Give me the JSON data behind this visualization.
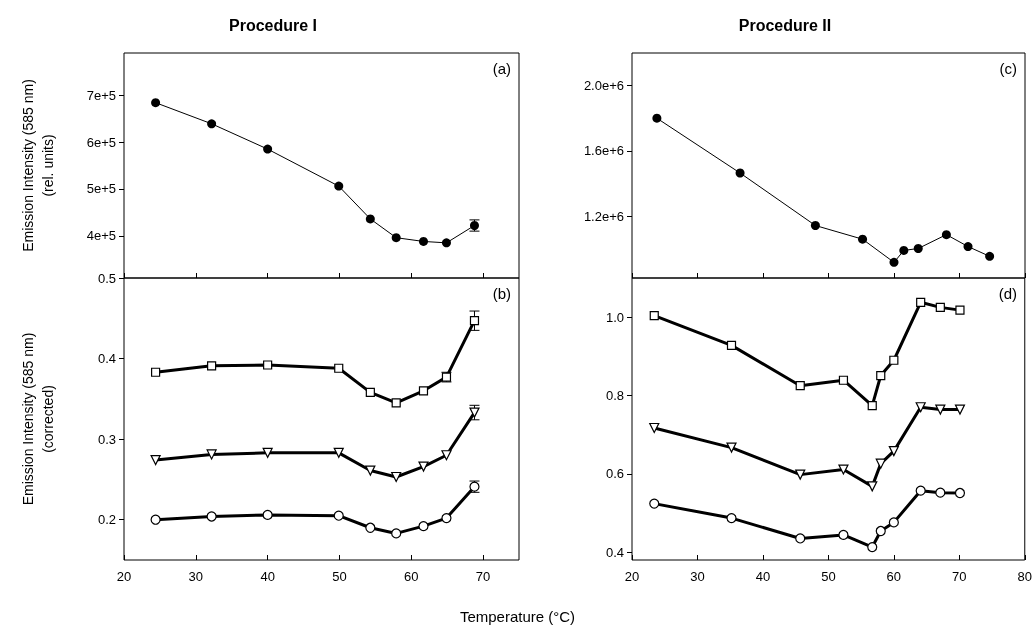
{
  "chart_data": [
    {
      "type": "line",
      "title": "Procedure I",
      "ylabel": "Emission Intensity (585 nm)\n(rel. units)",
      "annotations": [
        "(a)"
      ],
      "color": "#000000",
      "marker": "circle",
      "x": [
        24.4,
        32.2,
        40,
        49.9,
        54.3,
        57.9,
        61.7,
        64.9,
        68.8
      ],
      "values": [
        684000,
        639000,
        585000,
        506000,
        436000,
        396000,
        388000,
        385000,
        422000
      ],
      "errors": [
        null,
        null,
        null,
        null,
        null,
        null,
        null,
        null,
        12000
      ],
      "xlim": [
        20,
        75
      ],
      "xticks": [
        20,
        30,
        40,
        50,
        60,
        70
      ],
      "ylim": [
        310000,
        790000
      ],
      "yticks": [
        {
          "value": 400000,
          "label": "4e+5"
        },
        {
          "value": 500000,
          "label": "5e+5"
        },
        {
          "value": 600000,
          "label": "6e+5"
        },
        {
          "value": 700000,
          "label": "7e+5"
        }
      ],
      "tick_labels": "y"
    },
    {
      "type": "line",
      "ylabel": "Emission Intensity (585 nm)\n(corrected)",
      "xlabel": "Temperature (°C)",
      "annotations": [
        "(b)"
      ],
      "x": [
        24.4,
        32.2,
        40,
        49.9,
        54.3,
        57.9,
        61.7,
        64.9,
        68.8
      ],
      "series": [
        {
          "color": "#000000",
          "marker": "square",
          "values": [
            0.383,
            0.391,
            0.392,
            0.388,
            0.358,
            0.345,
            0.36,
            0.377,
            0.447
          ],
          "errors": [
            null,
            null,
            null,
            null,
            null,
            null,
            null,
            0.006,
            0.012
          ]
        },
        {
          "color": "#000000",
          "marker": "triangle",
          "values": [
            0.274,
            0.281,
            0.283,
            0.283,
            0.261,
            0.253,
            0.266,
            0.28,
            0.333
          ],
          "errors": [
            null,
            null,
            null,
            null,
            null,
            null,
            null,
            null,
            0.009
          ]
        },
        {
          "color": "#000000",
          "marker": "circle",
          "values": [
            0.2,
            0.204,
            0.206,
            0.205,
            0.19,
            0.183,
            0.192,
            0.202,
            0.241
          ],
          "errors": [
            null,
            null,
            null,
            null,
            null,
            null,
            null,
            null,
            0.007
          ]
        }
      ],
      "xlim": [
        20,
        75
      ],
      "xticks": [
        20,
        30,
        40,
        50,
        60,
        70
      ],
      "ylim": [
        0.15,
        0.5
      ],
      "yticks": [
        0.2,
        0.3,
        0.4,
        0.5
      ]
    },
    {
      "type": "line",
      "title": "Procedure II",
      "annotations": [
        "(c)"
      ],
      "color": "#000000",
      "marker": "circle",
      "x": [
        23.8,
        36.5,
        48,
        55.2,
        60,
        61.5,
        63.7,
        68,
        71.3,
        74.6
      ],
      "values": [
        1800000,
        1464000,
        1142000,
        1058000,
        916000,
        989000,
        1001000,
        1086000,
        1013000,
        953000
      ],
      "xlim": [
        20,
        80
      ],
      "xticks": [
        20,
        30,
        40,
        50,
        60,
        70,
        80
      ],
      "ylim": [
        820000,
        2200000
      ],
      "yticks": [
        {
          "value": 1200000,
          "label": "1.2e+6"
        },
        {
          "value": 1600000,
          "label": "1.6e+6"
        },
        {
          "value": 2000000,
          "label": "2.0e+6"
        }
      ],
      "tick_labels": "y"
    },
    {
      "type": "line",
      "annotations": [
        "(d)"
      ],
      "x": [
        23.4,
        35.2,
        45.7,
        52.3,
        56.7,
        58,
        60,
        64.1,
        67.1,
        70.1
      ],
      "series": [
        {
          "color": "#000000",
          "marker": "square",
          "values": [
            1.004,
            0.928,
            0.825,
            0.839,
            0.774,
            0.851,
            0.89,
            1.038,
            1.025,
            1.018
          ]
        },
        {
          "color": "#000000",
          "marker": "triangle",
          "values": [
            0.717,
            0.667,
            0.598,
            0.611,
            0.568,
            0.626,
            0.658,
            0.77,
            0.764,
            0.764
          ]
        },
        {
          "color": "#000000",
          "marker": "circle",
          "values": [
            0.524,
            0.487,
            0.435,
            0.444,
            0.413,
            0.454,
            0.476,
            0.557,
            0.552,
            0.551
          ]
        }
      ],
      "xlim": [
        20,
        80
      ],
      "xticks": [
        20,
        30,
        40,
        50,
        60,
        70,
        80
      ],
      "ylim": [
        0.38,
        1.1
      ],
      "yticks": [
        0.4,
        0.6,
        0.8,
        {
          "value": 1,
          "label": "1.0"
        }
      ]
    }
  ]
}
